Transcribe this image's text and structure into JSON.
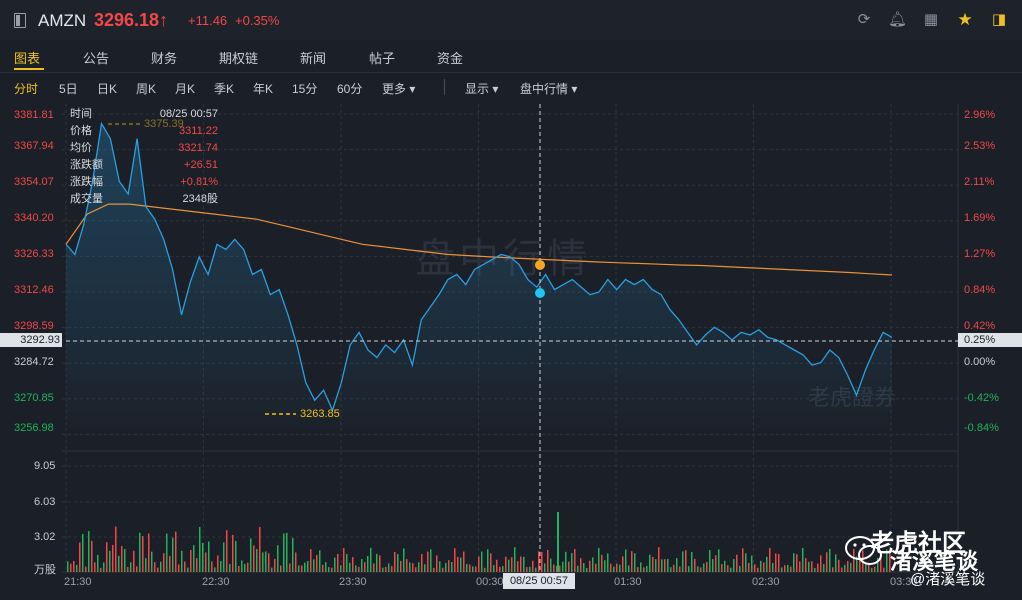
{
  "header": {
    "symbol": "AMZN",
    "price": "3296.18↑",
    "change": "+11.46",
    "change_pct": "+0.35%"
  },
  "tabs": [
    "图表",
    "公告",
    "财务",
    "期权链",
    "新闻",
    "帖子",
    "资金"
  ],
  "periods": [
    "分时",
    "5日",
    "日K",
    "周K",
    "月K",
    "季K",
    "年K",
    "15分",
    "60分",
    "更多 ▾"
  ],
  "menus": [
    "显示 ▾",
    "盘中行情 ▾"
  ],
  "y_labels": [
    "3381.81",
    "3367.94",
    "3354.07",
    "3340.20",
    "3326.33",
    "3312.46",
    "3298.59",
    "3284.72",
    "3270.85",
    "3256.98"
  ],
  "pct_labels": [
    "2.96%",
    "2.53%",
    "2.11%",
    "1.69%",
    "1.27%",
    "0.84%",
    "0.42%",
    "0.00%",
    "-0.42%",
    "-0.84%"
  ],
  "vol_labels": [
    "9.05",
    "6.03",
    "3.02",
    "万股"
  ],
  "x_labels": [
    "21:30",
    "22:30",
    "23:30",
    "00:30",
    "01:30",
    "02:30",
    "03:30"
  ],
  "info": {
    "rows": [
      {
        "k": "时间",
        "v": "08/25 00:57"
      },
      {
        "k": "价格",
        "v": "3311.22"
      },
      {
        "k": "均价",
        "v": "3321.74"
      },
      {
        "k": "涨跌额",
        "v": "+26.51"
      },
      {
        "k": "涨跌幅",
        "v": "+0.81%"
      },
      {
        "k": "成交量",
        "v": "2348股"
      }
    ]
  },
  "current_price_label": "3292.93",
  "current_pct_label": "0.25%",
  "crosshair_time": "08/25 00:57",
  "low_label": "3263.85",
  "high_label": "3375.39",
  "watermarks": {
    "center": "盘中行情",
    "brand": "老虎證券",
    "community": "老虎社区",
    "author": "渚溪笔谈",
    "handle": "@渚溪笔谈"
  },
  "colors": {
    "up": "#f04848",
    "down": "#22b35e",
    "accent": "#f0c020",
    "price_line": "#2a9fe0",
    "avg_line": "#e8923a"
  },
  "chart_data": {
    "type": "line",
    "ylim": [
      3256.98,
      3381.81
    ],
    "prev_close": 3284.72,
    "series": [
      {
        "values": [
          3330,
          3326,
          3338,
          3355,
          3378,
          3372,
          3355,
          3350,
          3372,
          3345,
          3340,
          3332,
          3320,
          3302,
          3315,
          3325,
          3318,
          3330,
          3328,
          3332,
          3328,
          3318,
          3320,
          3310,
          3312,
          3302,
          3290,
          3275,
          3268,
          3272,
          3264,
          3275,
          3290,
          3295,
          3288,
          3285,
          3290,
          3287,
          3292,
          3282,
          3300,
          3305,
          3310,
          3316,
          3318,
          3314,
          3320,
          3322,
          3324,
          3326,
          3325,
          3322,
          3316,
          3313,
          3318,
          3312,
          3314,
          3316,
          3313,
          3310,
          3311,
          3316,
          3312,
          3316,
          3314,
          3316,
          3312,
          3310,
          3304,
          3300,
          3295,
          3290,
          3294,
          3297,
          3295,
          3292,
          3295,
          3294,
          3296,
          3293,
          3292,
          3290,
          3288,
          3286,
          3282,
          3283,
          3288,
          3285,
          3278,
          3270,
          3280,
          3288,
          3295,
          3293
        ],
        "avg": [
          3330,
          3342,
          3346,
          3346,
          3345,
          3344,
          3343,
          3342,
          3341,
          3340,
          3338,
          3336,
          3334,
          3332,
          3330,
          3329,
          3328,
          3327,
          3326,
          3325.5,
          3325,
          3324.6,
          3324.2,
          3323.8,
          3323.4,
          3323,
          3322.7,
          3322.4,
          3322.1,
          3321.8,
          3321.6,
          3321.2,
          3320.8,
          3320.4,
          3320,
          3319.6,
          3319.2,
          3318.8,
          3318.3,
          3317.8
        ]
      }
    ]
  }
}
